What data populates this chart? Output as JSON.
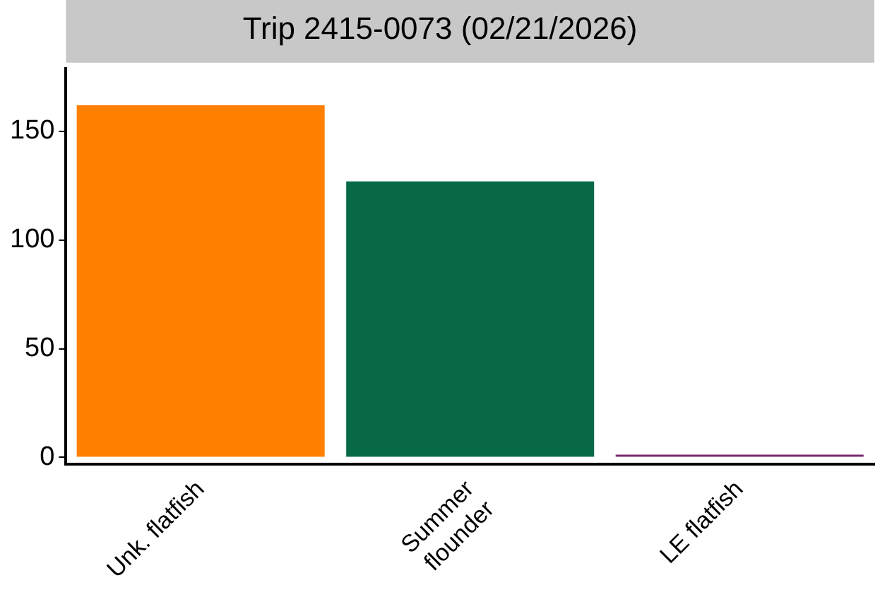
{
  "chart_data": {
    "type": "bar",
    "title": "Trip 2415-0073 (02/21/2026)",
    "categories": [
      "Unk. flatfish",
      "Summer\nflounder",
      "LE flatfish"
    ],
    "values": [
      162,
      127,
      1
    ],
    "colors": [
      "#ff7f00",
      "#076a45",
      "#7b2a6e"
    ],
    "ylim": [
      -3,
      179
    ],
    "yticks": [
      0,
      50,
      100,
      150
    ],
    "grid": false,
    "legend": false
  }
}
